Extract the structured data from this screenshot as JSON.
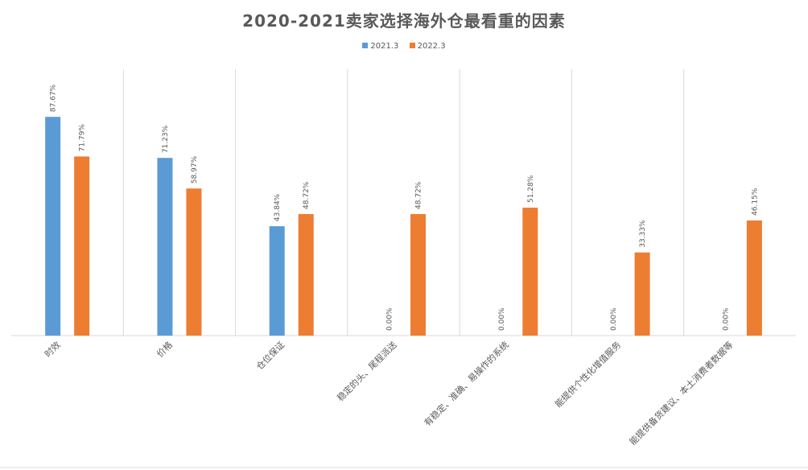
{
  "chart_data": {
    "type": "bar",
    "title": "2020-2021卖家选择海外仓最看重的因素",
    "categories": [
      "时效",
      "价格",
      "仓位保证",
      "稳定的头、尾程派送",
      "有稳定、准确、易操作的系统",
      "能提供个性化增值服务",
      "能提供备货建议、本土消费者数据等"
    ],
    "series": [
      {
        "name": "2021.3",
        "color": "#5b9bd5",
        "values": [
          87.67,
          71.23,
          43.84,
          0.0,
          0.0,
          0.0,
          0.0
        ],
        "labels": [
          "87.67%",
          "71.23%",
          "43.84%",
          "0.00%",
          "0.00%",
          "0.00%",
          "0.00%"
        ]
      },
      {
        "name": "2022.3",
        "color": "#ed7d31",
        "values": [
          71.79,
          58.97,
          48.72,
          48.72,
          51.28,
          33.33,
          46.15
        ],
        "labels": [
          "71.79%",
          "58.97%",
          "48.72%",
          "48.72%",
          "51.28%",
          "33.33%",
          "46.15%"
        ]
      }
    ],
    "ylim": [
      0,
      100
    ],
    "grid": "vertical category separators",
    "legend_position": "top"
  }
}
